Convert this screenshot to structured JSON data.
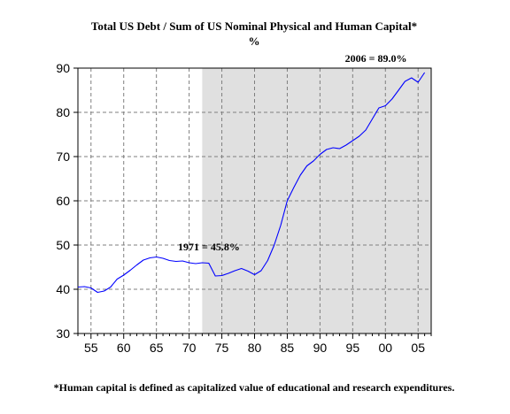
{
  "chart_data": {
    "type": "line",
    "title": "Total US Debt / Sum of US Nominal Physical and Human Capital*",
    "subtitle": "%",
    "xlabel": "",
    "ylabel": "",
    "xlim": [
      1953,
      2007
    ],
    "ylim": [
      30,
      90
    ],
    "x_ticks": [
      1955,
      1960,
      1965,
      1970,
      1975,
      1980,
      1985,
      1990,
      1995,
      2000,
      2005
    ],
    "x_tick_labels": [
      "55",
      "60",
      "65",
      "70",
      "75",
      "80",
      "85",
      "90",
      "95",
      "00",
      "05"
    ],
    "y_ticks": [
      30,
      40,
      50,
      60,
      70,
      80,
      90
    ],
    "y_tick_labels": [
      "30",
      "40",
      "50",
      "60",
      "70",
      "80",
      "90"
    ],
    "grid": true,
    "shaded_region": {
      "x_start": 1972,
      "x_end": 2007,
      "color": "#e0e0e0"
    },
    "line_color": "#0000ff",
    "series": [
      {
        "x": [
          1953,
          1954,
          1955,
          1956,
          1957,
          1958,
          1959,
          1960,
          1961,
          1962,
          1963,
          1964,
          1965,
          1966,
          1967,
          1968,
          1969,
          1970,
          1971,
          1972,
          1973,
          1974,
          1975,
          1976,
          1977,
          1978,
          1979,
          1980,
          1981,
          1982,
          1983,
          1984,
          1985,
          1986,
          1987,
          1988,
          1989,
          1990,
          1991,
          1992,
          1993,
          1994,
          1995,
          1996,
          1997,
          1998,
          1999,
          2000,
          2001,
          2002,
          2003,
          2004,
          2005,
          2006
        ],
        "values": [
          40.5,
          40.6,
          40.3,
          39.3,
          39.6,
          40.5,
          42.3,
          43.2,
          44.3,
          45.5,
          46.6,
          47.1,
          47.3,
          47.0,
          46.5,
          46.3,
          46.4,
          46.0,
          45.8,
          46.0,
          45.9,
          43.0,
          43.1,
          43.6,
          44.2,
          44.7,
          44.1,
          43.3,
          44.2,
          46.5,
          50.0,
          54.5,
          60.0,
          63.0,
          65.8,
          67.9,
          69.0,
          70.5,
          71.6,
          72.0,
          71.8,
          72.6,
          73.6,
          74.6,
          76.0,
          78.5,
          81.0,
          81.5,
          83.0,
          85.0,
          87.0,
          87.8,
          86.8,
          89.0
        ]
      }
    ],
    "annotations": [
      {
        "text": "1971 = 45.8%",
        "x": 1971,
        "y": 45.8
      },
      {
        "text": "2006 = 89.0%",
        "x": 2006,
        "y": 89.0
      }
    ],
    "footnote": "*Human capital is defined as capitalized value of educational and research expenditures."
  }
}
